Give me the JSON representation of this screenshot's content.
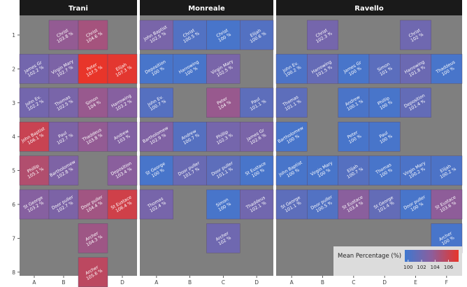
{
  "chart_data": {
    "type": "heatmap",
    "colorbar": {
      "title": "Mean Percentage (%)",
      "ticks": [
        100,
        102,
        104,
        106
      ],
      "min": 99.5,
      "max": 107.5,
      "low_color": "#3E78D0",
      "mid_color": "#8C5E9C",
      "high_color": "#E8352A"
    },
    "y_ticks": [
      "1",
      "2",
      "3",
      "4",
      "5",
      "6",
      "7",
      "8"
    ],
    "panels": [
      {
        "title": "Trani",
        "x_ticks": [
          "A",
          "B",
          "C",
          "D"
        ],
        "tiles": [
          {
            "col": "B",
            "row": 1,
            "label": "Christ",
            "value": 103.8
          },
          {
            "col": "C",
            "row": 1,
            "label": "Christ",
            "value": 104.6
          },
          {
            "col": "A",
            "row": 2,
            "label": "James Gr",
            "value": 102.2
          },
          {
            "col": "B",
            "row": 2,
            "label": "Virgin Mary",
            "value": 102.7
          },
          {
            "col": "C",
            "row": 2,
            "label": "Peter",
            "value": 107.5
          },
          {
            "col": "D",
            "row": 2,
            "label": "Elijah",
            "value": 107.3
          },
          {
            "col": "A",
            "row": 3,
            "label": "John Ev.",
            "value": 102.2
          },
          {
            "col": "B",
            "row": 3,
            "label": "Thomas",
            "value": 102.5
          },
          {
            "col": "C",
            "row": 3,
            "label": "Simon",
            "value": 104.0
          },
          {
            "col": "D",
            "row": 3,
            "label": "Harrowing",
            "value": 103.2
          },
          {
            "col": "A",
            "row": 4,
            "label": "John Baptist",
            "value": 106.1
          },
          {
            "col": "B",
            "row": 4,
            "label": "Paul",
            "value": 102.7
          },
          {
            "col": "C",
            "row": 4,
            "label": "Thaddeus",
            "value": 103.8
          },
          {
            "col": "D",
            "row": 4,
            "label": "Andrew",
            "value": 103.0
          },
          {
            "col": "A",
            "row": 5,
            "label": "Phillip",
            "value": 105.1
          },
          {
            "col": "B",
            "row": 5,
            "label": "Bartholomew",
            "value": 102.8
          },
          {
            "col": "D",
            "row": 5,
            "label": "Deposition",
            "value": 103.4
          },
          {
            "col": "A",
            "row": 6,
            "label": "St George",
            "value": 103.2
          },
          {
            "col": "B",
            "row": 6,
            "label": "Door puller",
            "value": 102.7
          },
          {
            "col": "C",
            "row": 6,
            "label": "Door puller",
            "value": 104.4
          },
          {
            "col": "D",
            "row": 6,
            "label": "St Eustace",
            "value": 106.4
          },
          {
            "col": "C",
            "row": 7,
            "label": "Archer",
            "value": 104.3
          },
          {
            "col": "C",
            "row": 8,
            "label": "Archer",
            "value": 105.6
          }
        ]
      },
      {
        "title": "Monreale",
        "x_ticks": [
          "A",
          "B",
          "C",
          "D"
        ],
        "tiles": [
          {
            "col": "A",
            "row": 1,
            "label": "John Baptist",
            "value": 102.5
          },
          {
            "col": "B",
            "row": 1,
            "label": "Christ",
            "value": 100.5
          },
          {
            "col": "C",
            "row": 1,
            "label": "Christ",
            "value": 100.0
          },
          {
            "col": "D",
            "row": 1,
            "label": "Elijah",
            "value": 100.6
          },
          {
            "col": "A",
            "row": 2,
            "label": "Deposition",
            "value": 100.0
          },
          {
            "col": "B",
            "row": 2,
            "label": "Harrowing",
            "value": 100.0
          },
          {
            "col": "C",
            "row": 2,
            "label": "Virgin Mary",
            "value": 102.5
          },
          {
            "col": "A",
            "row": 3,
            "label": "John Ev.",
            "value": 100.7
          },
          {
            "col": "C",
            "row": 3,
            "label": "Peter",
            "value": 104.0
          },
          {
            "col": "D",
            "row": 3,
            "label": "Paul",
            "value": 101.1
          },
          {
            "col": "A",
            "row": 4,
            "label": "Bartholomew",
            "value": 102.9
          },
          {
            "col": "B",
            "row": 4,
            "label": "Andrew",
            "value": 100.7
          },
          {
            "col": "C",
            "row": 4,
            "label": "Phillip",
            "value": 102.3
          },
          {
            "col": "D",
            "row": 4,
            "label": "James Gr",
            "value": 102.6
          },
          {
            "col": "A",
            "row": 5,
            "label": "St George",
            "value": 100.0
          },
          {
            "col": "B",
            "row": 5,
            "label": "Door puller",
            "value": 101.7
          },
          {
            "col": "C",
            "row": 5,
            "label": "Door puller",
            "value": 101.1
          },
          {
            "col": "D",
            "row": 5,
            "label": "St Eustace",
            "value": 100.0
          },
          {
            "col": "A",
            "row": 6,
            "label": "Thomas",
            "value": 102.4
          },
          {
            "col": "C",
            "row": 6,
            "label": "Simon",
            "value": 100.0
          },
          {
            "col": "D",
            "row": 6,
            "label": "Thaddeus",
            "value": 102.1
          },
          {
            "col": "C",
            "row": 7,
            "label": "Archer",
            "value": 102.0
          }
        ]
      },
      {
        "title": "Ravello",
        "x_ticks": [
          "A",
          "B",
          "C",
          "D",
          "E",
          "F"
        ],
        "tiles": [
          {
            "col": "B",
            "row": 1,
            "label": "Christ",
            "value": 102.3
          },
          {
            "col": "E",
            "row": 1,
            "label": "Christ",
            "value": 102.0
          },
          {
            "col": "A",
            "row": 2,
            "label": "John Ev.",
            "value": 100.2
          },
          {
            "col": "B",
            "row": 2,
            "label": "Harrowing",
            "value": 101.5
          },
          {
            "col": "C",
            "row": 2,
            "label": "James Gr",
            "value": 100.0
          },
          {
            "col": "D",
            "row": 2,
            "label": "Simon",
            "value": 101.0
          },
          {
            "col": "E",
            "row": 2,
            "label": "Harrowing",
            "value": 101.8
          },
          {
            "col": "F",
            "row": 2,
            "label": "Thaddeus",
            "value": 100.0
          },
          {
            "col": "A",
            "row": 3,
            "label": "Thomas",
            "value": 101.1
          },
          {
            "col": "C",
            "row": 3,
            "label": "Andrew",
            "value": 100.1
          },
          {
            "col": "D",
            "row": 3,
            "label": "Phillip",
            "value": 100.0
          },
          {
            "col": "E",
            "row": 3,
            "label": "Deposition",
            "value": 101.4
          },
          {
            "col": "A",
            "row": 4,
            "label": "Bartholomew",
            "value": 100.0
          },
          {
            "col": "C",
            "row": 4,
            "label": "Peter",
            "value": 100.0
          },
          {
            "col": "D",
            "row": 4,
            "label": "Paul",
            "value": 100.0
          },
          {
            "col": "A",
            "row": 5,
            "label": "John Baptist",
            "value": 100.0
          },
          {
            "col": "B",
            "row": 5,
            "label": "Virgin Mary",
            "value": 100.0
          },
          {
            "col": "C",
            "row": 5,
            "label": "Elijah",
            "value": 100.7
          },
          {
            "col": "D",
            "row": 5,
            "label": "Thomas",
            "value": 100.0
          },
          {
            "col": "E",
            "row": 5,
            "label": "Virgin Mary",
            "value": 100.2
          },
          {
            "col": "F",
            "row": 5,
            "label": "Elijah",
            "value": 100.2
          },
          {
            "col": "A",
            "row": 6,
            "label": "St George",
            "value": 101.1
          },
          {
            "col": "B",
            "row": 6,
            "label": "Door puller",
            "value": 100.5
          },
          {
            "col": "C",
            "row": 6,
            "label": "St Eustace",
            "value": 103.4
          },
          {
            "col": "D",
            "row": 6,
            "label": "St George",
            "value": 101.4
          },
          {
            "col": "E",
            "row": 6,
            "label": "Door puller",
            "value": 100.0
          },
          {
            "col": "F",
            "row": 6,
            "label": "St Eustace",
            "value": 103.6
          },
          {
            "col": "F",
            "row": 7,
            "label": "Archer",
            "value": 100.0
          }
        ]
      }
    ]
  }
}
